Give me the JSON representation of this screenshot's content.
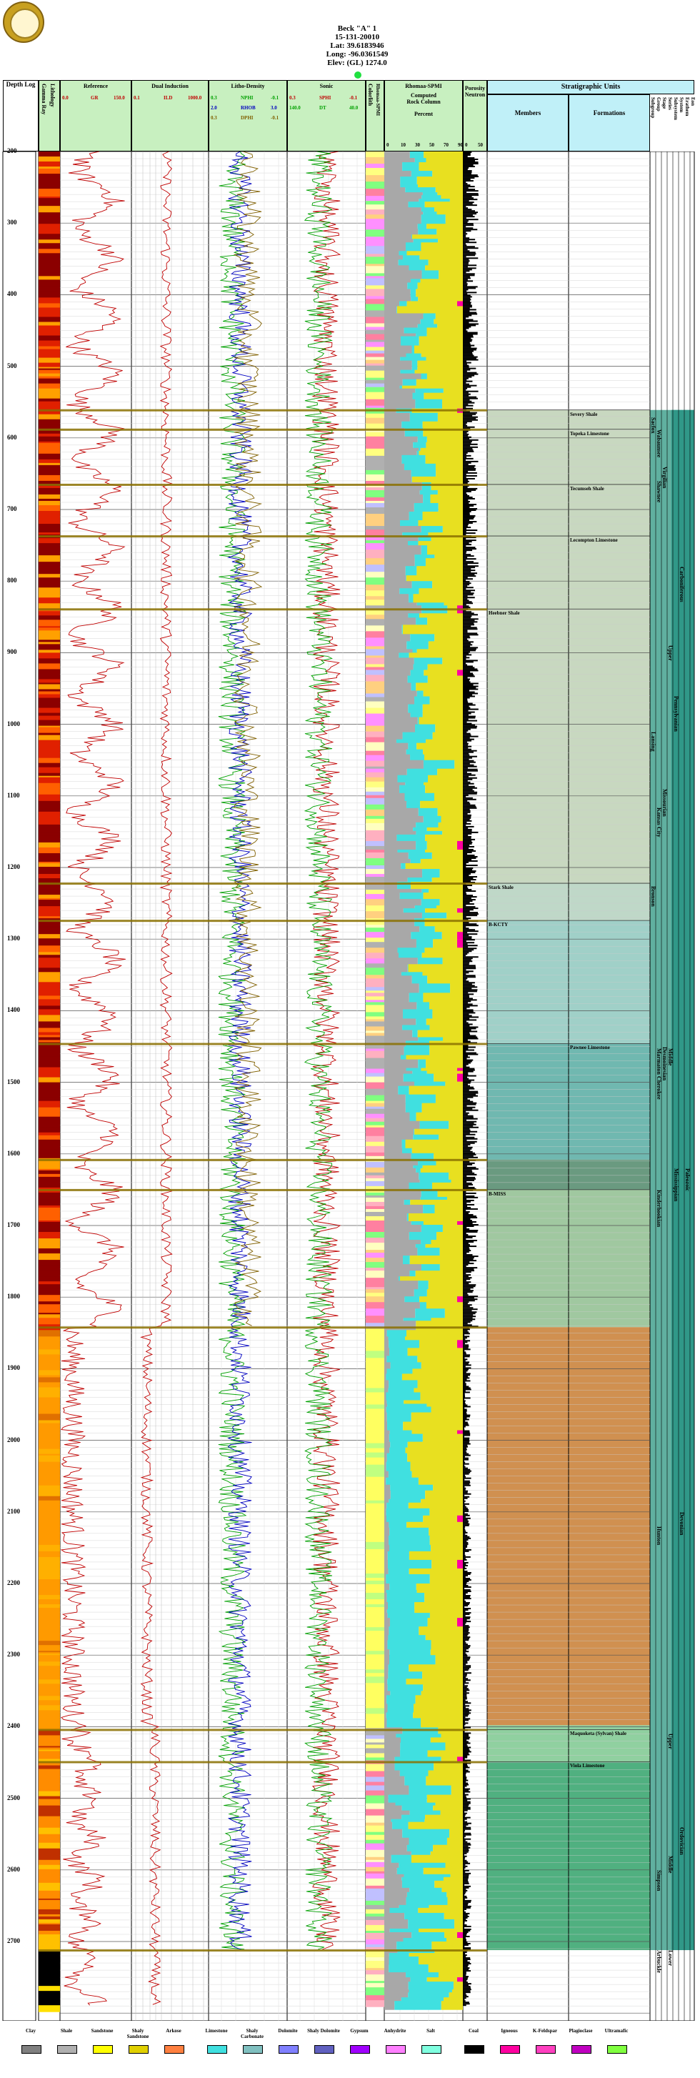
{
  "header": {
    "well_name": "Beck \"A\" 1",
    "api": "15-131-20010",
    "lat": "Lat: 39.6183946",
    "long": "Long: -96.0361549",
    "elev": "Elev: (GL) 1274.0"
  },
  "columns": {
    "depth_log": "Depth Log",
    "gamma_ray": "Gamma Ray",
    "lithology": "Lithology",
    "reference": "Reference",
    "dual_induction": "Dual Induction",
    "litho_density": "Litho-Density",
    "sonic": "Sonic",
    "colorlith": "Colorlith",
    "rhomaa_spmi_short": "Rhomaa-SPMI",
    "rhomaa_spmi": "Rhomaa-SPMI",
    "computed": "Computed",
    "rock_column": "Rock Column",
    "percent": "Percent",
    "porosity_neutron": "Porosity Neutron",
    "stratigraphic_units": "Stratigraphic Units",
    "members": "Members",
    "formations": "Formations",
    "strat_cols": [
      "Subgroup",
      "Group",
      "Stage",
      "Series",
      "Subsystem",
      "System",
      "Erathem",
      "Eon"
    ]
  },
  "scales": {
    "gr": {
      "left": "0.0",
      "name": "GR",
      "right": "150.0"
    },
    "ild": {
      "left": "0.1",
      "name": "ILD",
      "right": "1000.0"
    },
    "nphi": {
      "left": "0.3",
      "name": "NPHI",
      "right": "-0.1"
    },
    "rhob": {
      "left": "2.0",
      "name": "RHOB",
      "right": "3.0"
    },
    "dphi": {
      "left": "0.3",
      "name": "DPHI",
      "right": "-0.1"
    },
    "sphi": {
      "left": "0.3",
      "name": "SPHI",
      "right": "-0.1"
    },
    "dt": {
      "left": "140.0",
      "name": "DT",
      "right": "40.0"
    },
    "pct": [
      "0",
      "10",
      "30",
      "50",
      "70",
      "90"
    ],
    "por": [
      "0",
      "50"
    ]
  },
  "depths": [
    "200",
    "300",
    "400",
    "500",
    "600",
    "700",
    "800",
    "900",
    "1000",
    "1100",
    "1200",
    "1300",
    "1400",
    "1500",
    "1600",
    "1700",
    "1800",
    "1900",
    "2000",
    "2100",
    "2200",
    "2300",
    "2400",
    "2500",
    "2600",
    "2700"
  ],
  "members": [
    {
      "name": "Severy Shale",
      "top": 561
    },
    {
      "name": "Topeka Limestone",
      "top": 588
    },
    {
      "name": "Tecumseh Shale",
      "top": 665
    },
    {
      "name": "Lecompton Limestone",
      "top": 737
    },
    {
      "name": "Heebner Shale",
      "top": 839
    },
    {
      "name": "Stark Shale",
      "top": 1222
    },
    {
      "name": "B-KCTY",
      "top": 1274
    },
    {
      "name": "Pawnee Limestone",
      "top": 1446
    },
    {
      "name": "B-MISS",
      "top": 1650
    },
    {
      "name": "Maquoketa (Sylvan) Shale",
      "top": 2404
    },
    {
      "name": "Viola Limestone",
      "top": 2449
    }
  ],
  "units": {
    "subgroup": [
      "Sacfox",
      "Lansing",
      "Bronson"
    ],
    "group": [
      "Wabaunsee",
      "Shawnee",
      "Kansas City",
      "Marmaton Cherokee",
      "Kinderhookian",
      "Hunton",
      "Simpson",
      "Arbuckle"
    ],
    "stage": [
      "Virgilian",
      "Missourian",
      "Desmoinesian"
    ],
    "series": [
      "Upper",
      "Middle",
      "Upper",
      "Middle",
      "Lower"
    ],
    "subsystem": [
      "Pennsylvanian",
      "Mississippian"
    ],
    "system": [
      "Carboniferous",
      "Devonian",
      "Ordovician"
    ],
    "erathem": [
      "Paleozoic"
    ]
  },
  "legend": [
    {
      "label": "Clay",
      "color": "#808080"
    },
    {
      "label": "Shale",
      "color": "#b0b0b0"
    },
    {
      "label": "Sandstone",
      "color": "#ffff00"
    },
    {
      "label": "Shaly Sandstone",
      "color": "#e0d000"
    },
    {
      "label": "Arkose",
      "color": "#ff8040"
    },
    {
      "label": "Limestone",
      "color": "#40e0e0"
    },
    {
      "label": "Shaly Carbonate",
      "color": "#80c0c0"
    },
    {
      "label": "Dolomite",
      "color": "#8080ff"
    },
    {
      "label": "Shaly Dolomite",
      "color": "#6060c0"
    },
    {
      "label": "Gypsum",
      "color": "#a000ff"
    },
    {
      "label": "Anhydrite",
      "color": "#ff80ff"
    },
    {
      "label": "Salt",
      "color": "#80ffe0"
    },
    {
      "label": "Coal",
      "color": "#000000"
    },
    {
      "label": "Igneous",
      "color": "#ff00a0"
    },
    {
      "label": "K-Feldspar",
      "color": "#ff40c0"
    },
    {
      "label": "Plagioclase",
      "color": "#c000c0"
    },
    {
      "label": "Ultramafic",
      "color": "#80ff40"
    }
  ]
}
